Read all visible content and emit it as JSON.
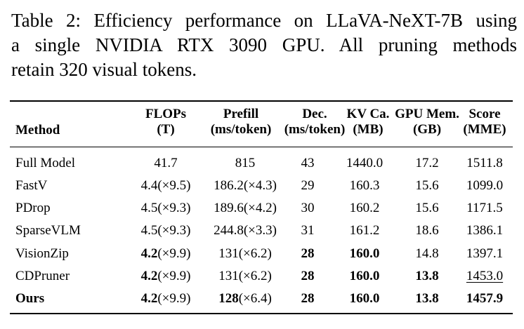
{
  "caption": {
    "line1": "Table 2: Efficiency performance on LLaVA-NeXT-7B using",
    "line2": "a single NVIDIA RTX 3090 GPU. All pruning methods",
    "line3": "retain 320 visual tokens."
  },
  "headers": {
    "method": "Method",
    "flops": [
      "FLOPs",
      "(T)"
    ],
    "prefill": [
      "Prefill",
      "(ms/token)"
    ],
    "dec": [
      "Dec.",
      "(ms/token)"
    ],
    "kv": [
      "KV Ca.",
      "(MB)"
    ],
    "gpu": [
      "GPU Mem.",
      "(GB)"
    ],
    "score": [
      "Score",
      "(MME)"
    ]
  },
  "rows": [
    {
      "method": "Full Model",
      "flops": "41.7",
      "flops_x": "",
      "prefill": "815",
      "prefill_x": "",
      "dec": "43",
      "kv": "1440.0",
      "gpu": "17.2",
      "score": "1511.8"
    },
    {
      "method": "FastV",
      "flops": "4.4",
      "flops_x": "(×9.5)",
      "prefill": "186.2",
      "prefill_x": "(×4.3)",
      "dec": "29",
      "kv": "160.3",
      "gpu": "15.6",
      "score": "1099.0"
    },
    {
      "method": "PDrop",
      "flops": "4.5",
      "flops_x": "(×9.3)",
      "prefill": "189.6",
      "prefill_x": "(×4.2)",
      "dec": "30",
      "kv": "160.2",
      "gpu": "15.6",
      "score": "1171.5"
    },
    {
      "method": "SparseVLM",
      "flops": "4.5",
      "flops_x": "(×9.3)",
      "prefill": "244.8",
      "prefill_x": "(×3.3)",
      "dec": "31",
      "kv": "161.2",
      "gpu": "18.6",
      "score": "1386.1"
    },
    {
      "method": "VisionZip",
      "flops": "4.2",
      "flops_x": "(×9.9)",
      "prefill": "131",
      "prefill_x": "(×6.2)",
      "dec": "28",
      "kv": "160.0",
      "gpu": "14.8",
      "score": "1397.1"
    },
    {
      "method": "CDPruner",
      "flops": "4.2",
      "flops_x": "(×9.9)",
      "prefill": "131",
      "prefill_x": "(×6.2)",
      "dec": "28",
      "kv": "160.0",
      "gpu": "13.8",
      "score": "1453.0"
    },
    {
      "method": "Ours",
      "flops": "4.2",
      "flops_x": "(×9.9)",
      "prefill": "128",
      "prefill_x": "(×6.4)",
      "dec": "28",
      "kv": "160.0",
      "gpu": "13.8",
      "score": "1457.9"
    }
  ],
  "styles": {
    "bold": [
      [],
      [],
      [],
      [],
      [
        "flops",
        "dec",
        "kv"
      ],
      [
        "flops",
        "dec",
        "kv",
        "gpu"
      ],
      [
        "method",
        "flops",
        "prefill",
        "dec",
        "kv",
        "gpu",
        "score"
      ]
    ],
    "underline": [
      [],
      [],
      [],
      [],
      [],
      [
        "score"
      ],
      []
    ]
  }
}
